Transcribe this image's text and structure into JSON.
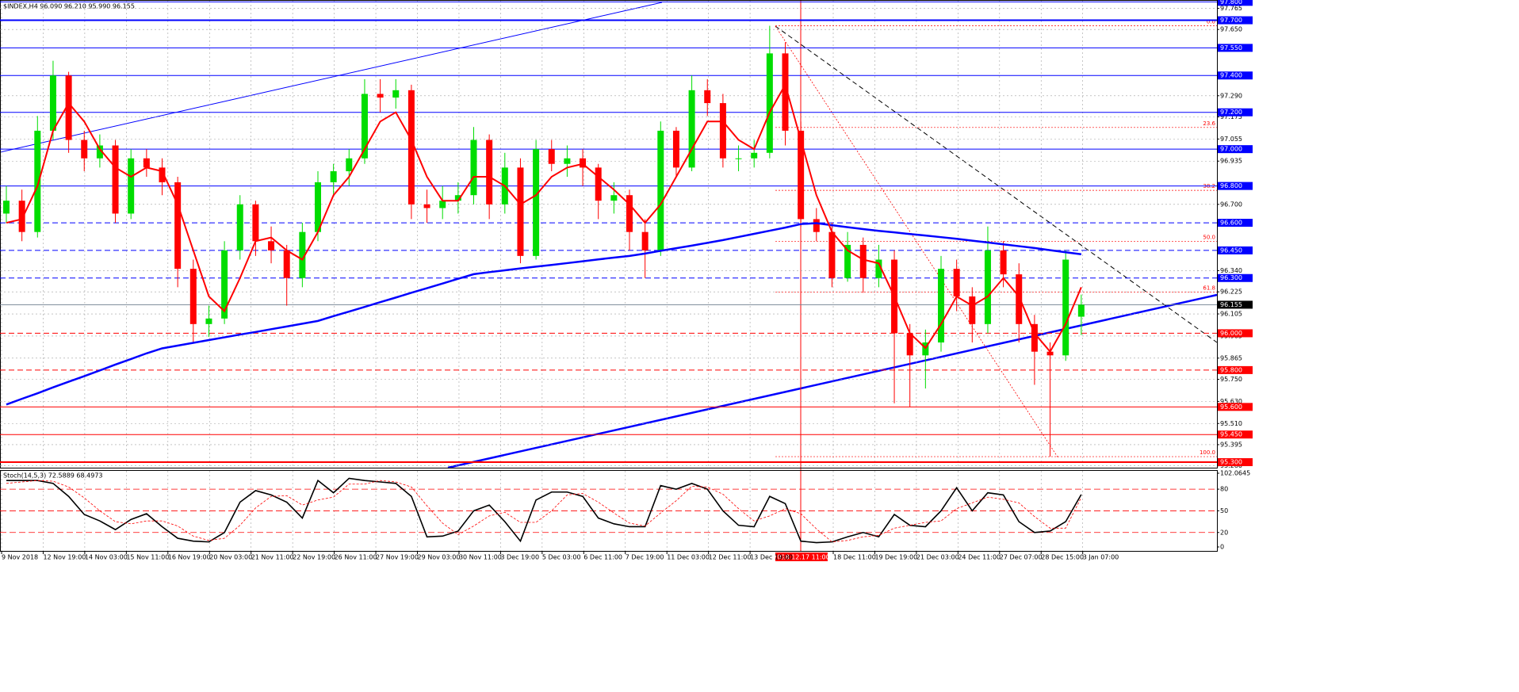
{
  "chart_data": [
    {
      "type": "candlestick",
      "title": "$INDEX,H4  96.090 96.210 95.990 96.155",
      "x_labels": [
        "9 Nov 2018",
        "12 Nov 19:00",
        "14 Nov 03:00",
        "15 Nov 11:00",
        "16 Nov 19:00",
        "20 Nov 03:00",
        "21 Nov 11:00",
        "22 Nov 19:00",
        "26 Nov 11:00",
        "27 Nov 19:00",
        "29 Nov 03:00",
        "30 Nov 11:00",
        "3 Dec 19:00",
        "5 Dec 03:00",
        "6 Dec 11:00",
        "7 Dec 19:00",
        "11 Dec 03:00",
        "12 Dec 11:00",
        "13 Dec 19:00",
        null,
        "18 Dec 11:00",
        "19 Dec 19:00",
        "21 Dec 03:00",
        "24 Dec 11:00",
        "27 Dec 07:00",
        "28 Dec 15:00",
        "3 Jan 07:00"
      ],
      "crosshair_label": "2018.12.17 11:00",
      "candles": [
        [
          96.65,
          96.8,
          96.6,
          96.72
        ],
        [
          96.72,
          96.78,
          96.5,
          96.55
        ],
        [
          96.55,
          97.18,
          96.52,
          97.1
        ],
        [
          97.1,
          97.48,
          97.05,
          97.4
        ],
        [
          97.4,
          97.42,
          96.98,
          97.05
        ],
        [
          97.05,
          97.1,
          96.88,
          96.95
        ],
        [
          96.95,
          97.08,
          96.9,
          97.02
        ],
        [
          97.02,
          97.05,
          96.6,
          96.65
        ],
        [
          96.65,
          97.0,
          96.62,
          96.95
        ],
        [
          96.95,
          97.0,
          96.85,
          96.9
        ],
        [
          96.9,
          96.95,
          96.75,
          96.82
        ],
        [
          96.82,
          96.85,
          96.25,
          96.35
        ],
        [
          96.35,
          96.4,
          95.95,
          96.05
        ],
        [
          96.05,
          96.15,
          95.98,
          96.08
        ],
        [
          96.08,
          96.5,
          96.05,
          96.45
        ],
        [
          96.45,
          96.75,
          96.4,
          96.7
        ],
        [
          96.7,
          96.72,
          96.42,
          96.5
        ],
        [
          96.5,
          96.58,
          96.38,
          96.45
        ],
        [
          96.45,
          96.48,
          96.15,
          96.3
        ],
        [
          96.3,
          96.6,
          96.25,
          96.55
        ],
        [
          96.55,
          96.88,
          96.5,
          96.82
        ],
        [
          96.82,
          96.92,
          96.75,
          96.88
        ],
        [
          96.88,
          97.0,
          96.8,
          96.95
        ],
        [
          96.95,
          97.38,
          96.92,
          97.3
        ],
        [
          97.3,
          97.38,
          97.2,
          97.28
        ],
        [
          97.28,
          97.38,
          97.22,
          97.32
        ],
        [
          97.32,
          97.35,
          96.62,
          96.7
        ],
        [
          96.7,
          96.78,
          96.6,
          96.68
        ],
        [
          96.68,
          96.8,
          96.62,
          96.72
        ],
        [
          96.72,
          96.82,
          96.65,
          96.75
        ],
        [
          96.75,
          97.12,
          96.7,
          97.05
        ],
        [
          97.05,
          97.08,
          96.62,
          96.7
        ],
        [
          96.7,
          96.98,
          96.65,
          96.9
        ],
        [
          96.9,
          96.95,
          96.38,
          96.42
        ],
        [
          96.42,
          97.05,
          96.4,
          97.0
        ],
        [
          97.0,
          97.05,
          96.88,
          96.92
        ],
        [
          96.92,
          97.02,
          96.85,
          96.95
        ],
        [
          96.95,
          97.0,
          96.8,
          96.9
        ],
        [
          96.9,
          96.92,
          96.62,
          96.72
        ],
        [
          96.72,
          96.82,
          96.65,
          96.75
        ],
        [
          96.75,
          96.78,
          96.45,
          96.55
        ],
        [
          96.55,
          96.62,
          96.3,
          96.45
        ],
        [
          96.45,
          97.15,
          96.42,
          97.1
        ],
        [
          97.1,
          97.12,
          96.85,
          96.9
        ],
        [
          96.9,
          97.4,
          96.88,
          97.32
        ],
        [
          97.32,
          97.38,
          97.18,
          97.25
        ],
        [
          97.25,
          97.3,
          96.9,
          96.95
        ],
        [
          96.95,
          97.02,
          96.88,
          96.95
        ],
        [
          96.95,
          97.05,
          96.9,
          96.98
        ],
        [
          96.98,
          97.67,
          96.95,
          97.52
        ],
        [
          97.52,
          97.58,
          97.02,
          97.1
        ],
        [
          97.1,
          97.15,
          96.58,
          96.62
        ],
        [
          96.62,
          96.68,
          96.5,
          96.55
        ],
        [
          96.55,
          96.6,
          96.25,
          96.3
        ],
        [
          96.3,
          96.55,
          96.28,
          96.48
        ],
        [
          96.48,
          96.52,
          96.22,
          96.3
        ],
        [
          96.3,
          96.48,
          96.25,
          96.4
        ],
        [
          96.4,
          96.45,
          95.62,
          96.0
        ],
        [
          96.0,
          96.05,
          95.6,
          95.88
        ],
        [
          95.88,
          96.02,
          95.7,
          95.95
        ],
        [
          95.95,
          96.42,
          95.9,
          96.35
        ],
        [
          96.35,
          96.4,
          96.12,
          96.2
        ],
        [
          96.2,
          96.25,
          95.95,
          96.05
        ],
        [
          96.05,
          96.58,
          96.0,
          96.45
        ],
        [
          96.45,
          96.5,
          96.25,
          96.32
        ],
        [
          96.32,
          96.38,
          95.95,
          96.05
        ],
        [
          96.05,
          96.1,
          95.72,
          95.9
        ],
        [
          95.9,
          95.95,
          95.33,
          95.88
        ],
        [
          95.88,
          96.45,
          95.85,
          96.4
        ],
        [
          96.09,
          96.21,
          95.99,
          96.155
        ]
      ],
      "up_color": "#00dd00",
      "down_color": "#ff0000",
      "lines": [
        {
          "color": "#0000ff",
          "width": 2.5,
          "values": [
            95.613,
            95.644,
            95.674,
            95.706,
            95.737,
            95.767,
            95.798,
            95.83,
            95.86,
            95.891,
            95.918,
            95.933,
            95.948,
            95.963,
            95.978,
            95.993,
            96.007,
            96.022,
            96.037,
            96.052,
            96.067,
            96.093,
            96.118,
            96.143,
            96.169,
            96.194,
            96.22,
            96.245,
            96.27,
            96.296,
            96.321,
            96.332,
            96.342,
            96.352,
            96.362,
            96.371,
            96.381,
            96.391,
            96.401,
            96.411,
            96.42,
            96.433,
            96.448,
            96.462,
            96.476,
            96.491,
            96.506,
            96.523,
            96.54,
            96.557,
            96.574,
            96.593,
            96.598,
            96.587,
            96.576,
            96.566,
            96.556,
            96.548,
            96.539,
            96.531,
            96.522,
            96.513,
            96.503,
            96.493,
            96.483,
            96.473,
            96.463,
            96.451,
            96.44,
            96.429
          ]
        },
        {
          "color": "#ff0000",
          "width": 2,
          "values": [
            96.6,
            96.62,
            96.8,
            97.1,
            97.25,
            97.15,
            97.0,
            96.9,
            96.85,
            96.9,
            96.88,
            96.7,
            96.45,
            96.2,
            96.12,
            96.3,
            96.5,
            96.52,
            96.45,
            96.4,
            96.55,
            96.75,
            96.85,
            97.0,
            97.15,
            97.2,
            97.05,
            96.85,
            96.72,
            96.72,
            96.85,
            96.85,
            96.8,
            96.7,
            96.75,
            96.85,
            96.9,
            96.92,
            96.85,
            96.78,
            96.7,
            96.6,
            96.7,
            96.85,
            97.0,
            97.15,
            97.15,
            97.05,
            97.0,
            97.2,
            97.35,
            97.05,
            96.75,
            96.55,
            96.45,
            96.4,
            96.38,
            96.2,
            96.0,
            95.92,
            96.05,
            96.2,
            96.15,
            96.2,
            96.3,
            96.2,
            96.0,
            95.9,
            96.05,
            96.25
          ]
        }
      ],
      "ylim": [
        95.27,
        97.81
      ],
      "yticks": [
        97.765,
        {
          "value": 97.65,
          "label": "97.650"
        },
        {
          "value": 97.29,
          "label": "97.290"
        },
        97.175,
        97.055,
        96.935,
        {
          "value": 96.7,
          "label": "96.700"
        },
        {
          "value": 96.34,
          "label": "96.340"
        },
        96.225,
        96.105,
        95.985,
        95.865,
        {
          "value": 95.75,
          "label": "95.750"
        },
        {
          "value": 95.63,
          "label": "95.630"
        },
        {
          "value": 95.51,
          "label": "95.510"
        },
        95.395,
        {
          "value": 95.28,
          "label": "95.280"
        }
      ],
      "levels": [
        {
          "value": 97.8,
          "label": "97.800",
          "color": "#0000ff",
          "dashed": false,
          "width": 1
        },
        {
          "value": 97.7,
          "label": "97.700",
          "color": "#0000ff",
          "dashed": false,
          "width": 2
        },
        {
          "value": 97.55,
          "label": "97.550",
          "color": "#0000ff",
          "dashed": false,
          "width": 1
        },
        {
          "value": 97.4,
          "label": "97.400",
          "color": "#0000ff",
          "dashed": false,
          "width": 1
        },
        {
          "value": 97.2,
          "label": "97.200",
          "color": "#0000ff",
          "dashed": false,
          "width": 1
        },
        {
          "value": 97,
          "label": "97.000",
          "color": "#0000ff",
          "dashed": false,
          "width": 1
        },
        {
          "value": 96.8,
          "label": "96.800",
          "color": "#0000ff",
          "dashed": false,
          "width": 1
        },
        {
          "value": 96.6,
          "label": "96.600",
          "color": "#0000ff",
          "dashed": true,
          "width": 1
        },
        {
          "value": 96.45,
          "label": "96.450",
          "color": "#0000ff",
          "dashed": true,
          "width": 1
        },
        {
          "value": 96.3,
          "label": "96.300",
          "color": "#0000ff",
          "dashed": true,
          "width": 1
        },
        {
          "value": 96,
          "label": "96.000",
          "color": "#ff0000",
          "dashed": true,
          "width": 1
        },
        {
          "value": 95.8,
          "label": "95.800",
          "color": "#ff0000",
          "dashed": true,
          "width": 1
        },
        {
          "value": 95.6,
          "label": "95.600",
          "color": "#ff0000",
          "dashed": false,
          "width": 1
        },
        {
          "value": 95.45,
          "label": "95.450",
          "color": "#ff0000",
          "dashed": false,
          "width": 1
        },
        {
          "value": 95.3,
          "label": "95.300",
          "color": "#ff0000",
          "dashed": false,
          "width": 2
        }
      ],
      "last_price": 96.155,
      "fibonacci": {
        "high": 97.67,
        "low": 95.33,
        "color": "#ff0000",
        "levels": [
          {
            "value": 0,
            "label": "0.0"
          },
          23.6,
          38.2,
          {
            "value": 50,
            "label": "50.0"
          },
          61.8,
          {
            "value": 100,
            "label": "100.0"
          }
        ]
      },
      "grid": true
    },
    {
      "type": "line",
      "title": "Stoch(14,5,3) 72.5889 68.4973",
      "series": [
        {
          "color": "#000000",
          "width": 1.6,
          "dashed": false,
          "values": [
            92,
            92,
            92,
            88,
            70,
            45,
            36,
            24,
            38,
            46,
            28,
            12,
            8,
            7,
            20,
            62,
            78,
            72,
            62,
            40,
            92,
            75,
            95,
            92,
            90,
            88,
            70,
            14,
            15,
            22,
            50,
            58,
            35,
            8,
            65,
            76,
            76,
            70,
            40,
            32,
            28,
            28,
            85,
            80,
            88,
            80,
            50,
            30,
            28,
            70,
            60,
            8,
            6,
            7,
            14,
            20,
            14,
            45,
            30,
            28,
            50,
            82,
            50,
            75,
            72,
            35,
            20,
            22,
            35,
            72.5889
          ]
        },
        {
          "color": "#ff0000",
          "width": 0.8,
          "dashed": true,
          "values": [
            88,
            90,
            92,
            91,
            83,
            68,
            50,
            35,
            32,
            36,
            36,
            29,
            15,
            9,
            12,
            30,
            54,
            70,
            71,
            58,
            65,
            69,
            87,
            87,
            92,
            90,
            83,
            57,
            33,
            17,
            29,
            43,
            48,
            34,
            34,
            50,
            72,
            74,
            62,
            47,
            33,
            29,
            47,
            64,
            84,
            83,
            73,
            53,
            36,
            43,
            53,
            46,
            25,
            7,
            9,
            14,
            16,
            26,
            30,
            34,
            36,
            53,
            61,
            69,
            66,
            61,
            42,
            26,
            26,
            68.4973
          ]
        }
      ],
      "ylim": [
        0,
        102.0645
      ],
      "yticks": [
        102.0645,
        80,
        50,
        20,
        0
      ]
    }
  ]
}
